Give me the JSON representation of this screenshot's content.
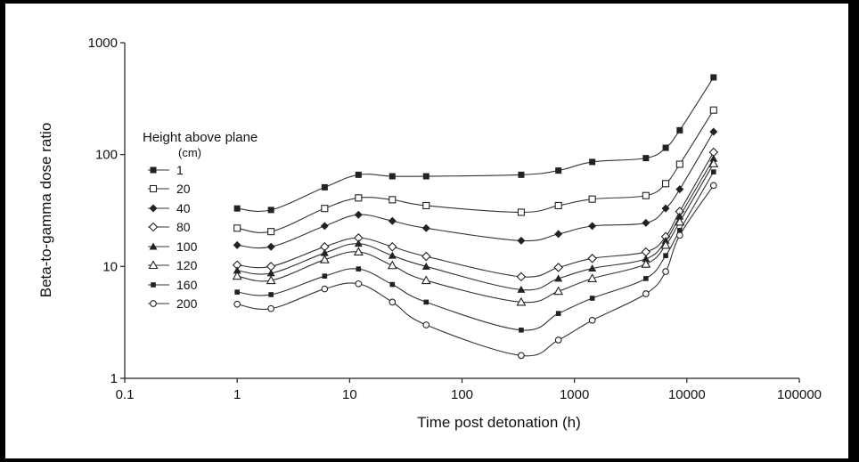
{
  "chart_data": {
    "type": "line",
    "xlabel": "Time post detonation (h)",
    "ylabel": "Beta-to-gamma dose ratio",
    "xscale": "log",
    "yscale": "log",
    "xlim": [
      0.1,
      100000
    ],
    "ylim": [
      1,
      1000
    ],
    "xticks": [
      "0.1",
      "1",
      "10",
      "100",
      "1000",
      "10000",
      "100000"
    ],
    "yticks": [
      "1",
      "10",
      "100",
      "1000"
    ],
    "grid": false,
    "legend": {
      "title": "Height above plane",
      "unit": "(cm)",
      "placement": "left"
    },
    "x": [
      1,
      2,
      6,
      12,
      24,
      48,
      336,
      720,
      1440,
      4320,
      6480,
      8640,
      17280
    ],
    "series": [
      {
        "name": "1",
        "marker": "square-filled",
        "values": [
          33,
          32,
          51,
          66,
          64,
          64,
          66,
          72,
          86,
          93,
          115,
          165,
          490
        ]
      },
      {
        "name": "20",
        "marker": "square-open",
        "values": [
          22,
          20.5,
          33,
          41,
          39.5,
          35,
          30.5,
          35,
          40,
          43,
          55,
          82,
          250
        ]
      },
      {
        "name": "40",
        "marker": "diamond-filled",
        "values": [
          15.5,
          15,
          23,
          29,
          25.5,
          22,
          17,
          19.5,
          23,
          24.5,
          33,
          49,
          160
        ]
      },
      {
        "name": "80",
        "marker": "diamond-open",
        "values": [
          10.3,
          10,
          15,
          18,
          15,
          12.3,
          8.1,
          9.8,
          11.8,
          13.5,
          18.5,
          31,
          105
        ]
      },
      {
        "name": "100",
        "marker": "triangle-filled",
        "values": [
          9.2,
          8.7,
          13.2,
          16,
          12.5,
          10,
          6.2,
          7.8,
          9.6,
          11.7,
          17,
          28,
          92
        ]
      },
      {
        "name": "120",
        "marker": "triangle-open",
        "values": [
          8.2,
          7.5,
          11.5,
          13.5,
          10.2,
          7.5,
          4.8,
          6,
          7.8,
          10.5,
          15.5,
          25,
          83
        ]
      },
      {
        "name": "160",
        "marker": "square-small",
        "values": [
          5.9,
          5.6,
          8.2,
          9.5,
          6.9,
          4.8,
          2.7,
          3.8,
          5.2,
          7.8,
          12.5,
          21,
          70
        ]
      },
      {
        "name": "200",
        "marker": "circle-open",
        "values": [
          4.6,
          4.2,
          6.3,
          7,
          4.8,
          3,
          1.6,
          2.2,
          3.3,
          5.7,
          9,
          19,
          53
        ]
      }
    ]
  }
}
